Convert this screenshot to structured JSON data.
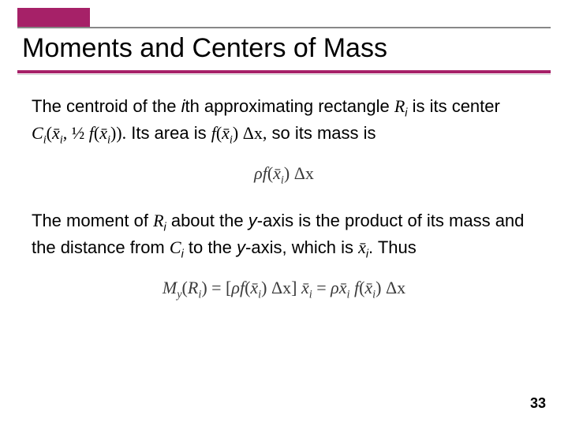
{
  "accent_color": "#a62168",
  "title": "Moments and Centers of Mass",
  "p1a": "The centroid of the ",
  "p1_ith": "i",
  "p1b": "th approximating rectangle ",
  "p1_R": "R",
  "p1_Rsub": "i",
  "p1c": " is its center ",
  "center_expr_C": "C",
  "center_expr_sub": "i",
  "center_expr_open": "(",
  "center_expr_x": "x̄",
  "center_expr_xsub": "i",
  "center_expr_comma": ", ",
  "center_expr_half": "½",
  "center_expr_f": " f",
  "center_expr_fopen": "(",
  "center_expr_fx": "x̄",
  "center_expr_fxsub": "i",
  "center_expr_close": ")).",
  "p1d": " Its area is ",
  "area_f": "f",
  "area_open": "(",
  "area_x": "x̄",
  "area_xsub": "i",
  "area_close": ") ",
  "area_dx": "Δx",
  "area_comma": ",",
  "p1e": " so its mass is",
  "eq1_rho": "ρ",
  "eq1_f": "f",
  "eq1_open": "(",
  "eq1_x": "x̄",
  "eq1_xsub": "i",
  "eq1_close": ") ",
  "eq1_dx": "Δx",
  "p2a": "The moment of ",
  "p2_R": "R",
  "p2_Rsub": "i",
  "p2b": " about the ",
  "p2_y1": "y",
  "p2c": "-axis is the product of its mass and the distance from ",
  "p2_C": "C",
  "p2_Csub": "i",
  "p2d": " to the ",
  "p2_y2": "y",
  "p2e": "-axis, which is ",
  "p2_xi": "x̄",
  "p2_xisub": "i",
  "p2_period": ".",
  "p2f": " Thus",
  "eq2_M": "M",
  "eq2_Msub": "y",
  "eq2_open": "(",
  "eq2_R": "R",
  "eq2_Rsub": "i",
  "eq2_close": ") = [",
  "eq2_rho": "ρ",
  "eq2_f": "f",
  "eq2_fopen": "(",
  "eq2_fx": "x̄",
  "eq2_fxsub": "i",
  "eq2_fclose": ") ",
  "eq2_dx1": "Δx",
  "eq2_bclose": "] ",
  "eq2_xa": "x̄",
  "eq2_xasub": "i",
  "eq2_eq": " = ",
  "eq2_rho2": "ρ",
  "eq2_xb": "x̄",
  "eq2_xbsub": "i",
  "eq2_f2": " f",
  "eq2_f2open": "(",
  "eq2_f2x": "x̄",
  "eq2_f2xsub": "i",
  "eq2_f2close": ") ",
  "eq2_dx2": "Δx",
  "page_number": "33"
}
